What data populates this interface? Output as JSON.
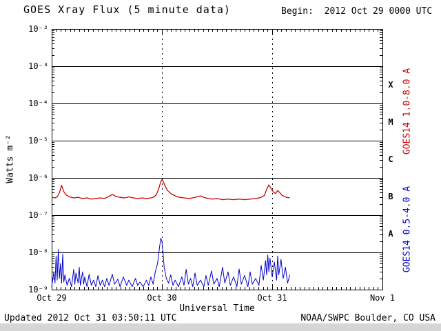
{
  "header": {
    "title": "GOES Xray Flux (5 minute data)",
    "begin_label": "Begin:  2012 Oct 29 0000 UTC"
  },
  "footer": {
    "updated": "Updated 2012 Oct 31 03:50:11 UTC",
    "credit": "NOAA/SWPC Boulder, CO USA"
  },
  "axes": {
    "y_label": "Watts m⁻²",
    "x_label": "Universal Time",
    "y_tick_labels": [
      "10⁻²",
      "10⁻³",
      "10⁻⁴",
      "10⁻⁵",
      "10⁻⁶",
      "10⁻⁷",
      "10⁻⁸",
      "10⁻⁹"
    ],
    "y_tick_exponents": [
      -2,
      -3,
      -4,
      -5,
      -6,
      -7,
      -8,
      -9
    ],
    "x_tick_labels": [
      "Oct 29",
      "Oct 30",
      "Oct 31",
      "Nov 1"
    ],
    "x_tick_days": [
      0,
      1,
      2,
      3
    ],
    "class_letters": [
      "X",
      "M",
      "C",
      "B",
      "A"
    ]
  },
  "right_labels": {
    "long_channel": "GOES14 1.0-8.0 A",
    "short_channel": "GOES14 0.5-4.0 A"
  },
  "colors": {
    "long": "#cc0000",
    "short": "#0000cc",
    "axis": "#000000",
    "background": "#ffffff"
  },
  "chart_data": {
    "type": "line",
    "title": "GOES Xray Flux (5 minute data)",
    "xlabel": "Universal Time",
    "ylabel": "Watts m⁻²",
    "x_range_days": [
      0,
      3
    ],
    "x_tick_labels": [
      "Oct 29",
      "Oct 30",
      "Oct 31",
      "Nov 1"
    ],
    "y_log_range": [
      -9,
      -2
    ],
    "y_scale": "log",
    "grid": "solid horizontal lines at each decade, dashed vertical lines at day boundaries",
    "legend_position": "right-rotated",
    "series": [
      {
        "name": "GOES14 1.0-8.0 A",
        "color": "#cc0000",
        "points": [
          [
            0.0,
            3e-07
          ],
          [
            0.03,
            2.9e-07
          ],
          [
            0.05,
            3.1e-07
          ],
          [
            0.07,
            4e-07
          ],
          [
            0.09,
            6.3e-07
          ],
          [
            0.11,
            4.3e-07
          ],
          [
            0.13,
            3.5e-07
          ],
          [
            0.16,
            3.1e-07
          ],
          [
            0.2,
            2.9e-07
          ],
          [
            0.24,
            3e-07
          ],
          [
            0.28,
            2.8e-07
          ],
          [
            0.32,
            2.9e-07
          ],
          [
            0.36,
            2.7e-07
          ],
          [
            0.4,
            2.8e-07
          ],
          [
            0.44,
            2.9e-07
          ],
          [
            0.48,
            2.8e-07
          ],
          [
            0.52,
            3.2e-07
          ],
          [
            0.55,
            3.6e-07
          ],
          [
            0.58,
            3.2e-07
          ],
          [
            0.62,
            3e-07
          ],
          [
            0.66,
            2.9e-07
          ],
          [
            0.7,
            3.1e-07
          ],
          [
            0.74,
            2.9e-07
          ],
          [
            0.78,
            2.8e-07
          ],
          [
            0.82,
            2.9e-07
          ],
          [
            0.86,
            2.8e-07
          ],
          [
            0.9,
            2.9e-07
          ],
          [
            0.93,
            3.1e-07
          ],
          [
            0.95,
            3.6e-07
          ],
          [
            0.97,
            5e-07
          ],
          [
            0.99,
            8e-07
          ],
          [
            1.0,
            9e-07
          ],
          [
            1.01,
            8.2e-07
          ],
          [
            1.03,
            6e-07
          ],
          [
            1.05,
            4.6e-07
          ],
          [
            1.08,
            3.8e-07
          ],
          [
            1.12,
            3.3e-07
          ],
          [
            1.16,
            3e-07
          ],
          [
            1.2,
            2.9e-07
          ],
          [
            1.25,
            2.8e-07
          ],
          [
            1.3,
            3e-07
          ],
          [
            1.35,
            3.3e-07
          ],
          [
            1.38,
            3e-07
          ],
          [
            1.42,
            2.8e-07
          ],
          [
            1.46,
            2.7e-07
          ],
          [
            1.5,
            2.8e-07
          ],
          [
            1.55,
            2.6e-07
          ],
          [
            1.6,
            2.7e-07
          ],
          [
            1.65,
            2.6e-07
          ],
          [
            1.7,
            2.7e-07
          ],
          [
            1.75,
            2.6e-07
          ],
          [
            1.8,
            2.7e-07
          ],
          [
            1.85,
            2.8e-07
          ],
          [
            1.9,
            3e-07
          ],
          [
            1.93,
            3.4e-07
          ],
          [
            1.95,
            5e-07
          ],
          [
            1.97,
            6.5e-07
          ],
          [
            1.99,
            5.2e-07
          ],
          [
            2.01,
            4.2e-07
          ],
          [
            2.03,
            3.8e-07
          ],
          [
            2.05,
            4.6e-07
          ],
          [
            2.07,
            4e-07
          ],
          [
            2.09,
            3.4e-07
          ],
          [
            2.11,
            3.2e-07
          ],
          [
            2.13,
            3e-07
          ],
          [
            2.16,
            2.9e-07
          ]
        ]
      },
      {
        "name": "GOES14 0.5-4.0 A",
        "color": "#0000cc",
        "points": [
          [
            0.0,
            1.2e-09
          ],
          [
            0.02,
            3e-09
          ],
          [
            0.03,
            1.5e-09
          ],
          [
            0.04,
            8e-09
          ],
          [
            0.05,
            1.8e-09
          ],
          [
            0.06,
            1.2e-08
          ],
          [
            0.07,
            2e-09
          ],
          [
            0.08,
            5e-09
          ],
          [
            0.09,
            1.5e-09
          ],
          [
            0.1,
            9e-09
          ],
          [
            0.11,
            1.6e-09
          ],
          [
            0.12,
            2.5e-09
          ],
          [
            0.14,
            1.3e-09
          ],
          [
            0.16,
            2e-09
          ],
          [
            0.18,
            1.2e-09
          ],
          [
            0.2,
            3.5e-09
          ],
          [
            0.21,
            1.4e-09
          ],
          [
            0.22,
            2.8e-09
          ],
          [
            0.24,
            1.5e-09
          ],
          [
            0.25,
            4e-09
          ],
          [
            0.26,
            1.3e-09
          ],
          [
            0.28,
            3e-09
          ],
          [
            0.29,
            1.4e-09
          ],
          [
            0.3,
            2.2e-09
          ],
          [
            0.32,
            1.2e-09
          ],
          [
            0.34,
            2.6e-09
          ],
          [
            0.36,
            1.3e-09
          ],
          [
            0.38,
            1.8e-09
          ],
          [
            0.4,
            1.2e-09
          ],
          [
            0.42,
            2.4e-09
          ],
          [
            0.44,
            1.3e-09
          ],
          [
            0.46,
            1.8e-09
          ],
          [
            0.48,
            1.2e-09
          ],
          [
            0.5,
            2e-09
          ],
          [
            0.52,
            1.3e-09
          ],
          [
            0.55,
            2.6e-09
          ],
          [
            0.57,
            1.4e-09
          ],
          [
            0.6,
            1.9e-09
          ],
          [
            0.62,
            1.2e-09
          ],
          [
            0.65,
            2.2e-09
          ],
          [
            0.68,
            1.3e-09
          ],
          [
            0.7,
            1.8e-09
          ],
          [
            0.73,
            1.2e-09
          ],
          [
            0.76,
            2e-09
          ],
          [
            0.78,
            1.3e-09
          ],
          [
            0.8,
            1.6e-09
          ],
          [
            0.83,
            1.2e-09
          ],
          [
            0.86,
            1.8e-09
          ],
          [
            0.88,
            1.3e-09
          ],
          [
            0.9,
            2.2e-09
          ],
          [
            0.92,
            1.4e-09
          ],
          [
            0.94,
            3e-09
          ],
          [
            0.96,
            5e-09
          ],
          [
            0.98,
            1.5e-08
          ],
          [
            0.99,
            2.4e-08
          ],
          [
            1.0,
            2e-08
          ],
          [
            1.01,
            1e-08
          ],
          [
            1.02,
            4e-09
          ],
          [
            1.04,
            2e-09
          ],
          [
            1.06,
            1.5e-09
          ],
          [
            1.08,
            2.5e-09
          ],
          [
            1.1,
            1.3e-09
          ],
          [
            1.12,
            1.8e-09
          ],
          [
            1.15,
            1.2e-09
          ],
          [
            1.18,
            2.2e-09
          ],
          [
            1.2,
            1.3e-09
          ],
          [
            1.22,
            3.5e-09
          ],
          [
            1.24,
            1.4e-09
          ],
          [
            1.26,
            2e-09
          ],
          [
            1.28,
            1.2e-09
          ],
          [
            1.3,
            2.8e-09
          ],
          [
            1.32,
            1.3e-09
          ],
          [
            1.35,
            1.8e-09
          ],
          [
            1.38,
            1.2e-09
          ],
          [
            1.4,
            2.4e-09
          ],
          [
            1.42,
            1.3e-09
          ],
          [
            1.45,
            3.2e-09
          ],
          [
            1.47,
            1.4e-09
          ],
          [
            1.5,
            2e-09
          ],
          [
            1.52,
            1.2e-09
          ],
          [
            1.55,
            4e-09
          ],
          [
            1.57,
            1.5e-09
          ],
          [
            1.6,
            3e-09
          ],
          [
            1.62,
            1.3e-09
          ],
          [
            1.65,
            2.2e-09
          ],
          [
            1.68,
            1.2e-09
          ],
          [
            1.7,
            3.6e-09
          ],
          [
            1.72,
            1.4e-09
          ],
          [
            1.75,
            2.4e-09
          ],
          [
            1.78,
            1.2e-09
          ],
          [
            1.8,
            3e-09
          ],
          [
            1.82,
            1.4e-09
          ],
          [
            1.85,
            2e-09
          ],
          [
            1.88,
            1.3e-09
          ],
          [
            1.9,
            4.5e-09
          ],
          [
            1.92,
            1.8e-09
          ],
          [
            1.94,
            6e-09
          ],
          [
            1.95,
            2.5e-09
          ],
          [
            1.96,
            8.5e-09
          ],
          [
            1.97,
            3e-09
          ],
          [
            1.98,
            7e-09
          ],
          [
            2.0,
            2.2e-09
          ],
          [
            2.02,
            5.5e-09
          ],
          [
            2.04,
            1.8e-09
          ],
          [
            2.05,
            8e-09
          ],
          [
            2.06,
            2.5e-09
          ],
          [
            2.08,
            6.5e-09
          ],
          [
            2.1,
            2e-09
          ],
          [
            2.12,
            4e-09
          ],
          [
            2.14,
            1.5e-09
          ],
          [
            2.16,
            2.5e-09
          ]
        ]
      }
    ]
  }
}
